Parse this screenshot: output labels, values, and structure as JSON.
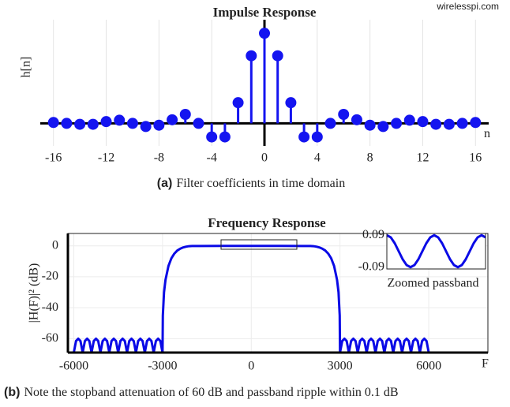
{
  "watermark": "wirelesspi.com",
  "chart_data": [
    {
      "type": "stem",
      "title": "Impulse Response",
      "ylabel": "h[n]",
      "xlabel": "n",
      "caption_label": "(a)",
      "caption": "Filter coefficients in time domain",
      "x": [
        -16,
        -15,
        -14,
        -13,
        -12,
        -11,
        -10,
        -9,
        -8,
        -7,
        -6,
        -5,
        -4,
        -3,
        -2,
        -1,
        0,
        1,
        2,
        3,
        4,
        5,
        6,
        7,
        8,
        9,
        10,
        11,
        12,
        13,
        14,
        15,
        16
      ],
      "values": [
        0.01,
        0,
        -0.01,
        -0.01,
        0.02,
        0.035,
        0,
        -0.035,
        -0.02,
        0.04,
        0.1,
        0,
        -0.15,
        -0.15,
        0.23,
        0.75,
        1,
        0.75,
        0.23,
        -0.15,
        -0.15,
        0,
        0.1,
        0.04,
        -0.02,
        -0.035,
        0,
        0.035,
        0.02,
        -0.01,
        -0.01,
        0,
        0.01
      ],
      "color": "#1414f0",
      "xlim": [
        -17,
        17
      ],
      "ylim": [
        -0.25,
        1.15
      ],
      "xticks": [
        -16,
        -12,
        -8,
        -4,
        0,
        4,
        8,
        12,
        16
      ],
      "grid": true
    },
    {
      "type": "line",
      "title": "Frequency Response",
      "ylabel": "|H(F)|² (dB)",
      "xlabel": "F",
      "caption_label": "(b)",
      "caption": "Note the stopband attenuation of 60 dB and passband ripple within 0.1 dB",
      "x": [
        -6000,
        -5925,
        -5850,
        -5775,
        -5700,
        -5625,
        -5550,
        -5475,
        -5400,
        -5325,
        -5250,
        -5175,
        -5100,
        -5025,
        -4950,
        -4875,
        -4800,
        -4725,
        -4650,
        -4575,
        -4500,
        -4425,
        -4350,
        -4275,
        -4200,
        -4125,
        -4050,
        -3975,
        -3900,
        -3825,
        -3750,
        -3675,
        -3600,
        -3525,
        -3450,
        -3375,
        -3300,
        -3225,
        -3150,
        -3075,
        -3000,
        -2990,
        -2950,
        -2900,
        -2800,
        -2700,
        -2600,
        -2500,
        -2400,
        -2300,
        -2200,
        -2100,
        -2000,
        -1000,
        0,
        1000,
        2000,
        2100,
        2200,
        2300,
        2400,
        2500,
        2600,
        2700,
        2800,
        2900,
        2950,
        2990,
        3000,
        3075,
        3150,
        3225,
        3300,
        3375,
        3450,
        3525,
        3600,
        3675,
        3750,
        3825,
        3900,
        3975,
        4050,
        4125,
        4200,
        4275,
        4350,
        4425,
        4500,
        4575,
        4650,
        4725,
        4800,
        4875,
        4950,
        5025,
        5100,
        5175,
        5250,
        5325,
        5400,
        5475,
        5550,
        5625,
        5700,
        5775,
        5850,
        5925,
        6000
      ],
      "series": [
        {
          "color": "#0a0ae6",
          "values": [
            -69,
            -61.5,
            -60,
            -61.5,
            -69,
            -61.5,
            -60,
            -61.5,
            -69,
            -61.5,
            -60,
            -61.5,
            -69,
            -61.5,
            -60,
            -61.5,
            -69,
            -61.5,
            -60,
            -61.5,
            -69,
            -61.5,
            -60,
            -61.5,
            -69,
            -61.5,
            -60,
            -61.5,
            -69,
            -61.5,
            -60,
            -61.5,
            -69,
            -61.5,
            -60,
            -61.5,
            -69,
            -61.5,
            -60,
            -61.5,
            -69,
            -45,
            -30,
            -22,
            -13,
            -8,
            -5,
            -3,
            -1.8,
            -1,
            -0.5,
            -0.2,
            -0.1,
            0,
            0,
            0,
            -0.1,
            -0.2,
            -0.5,
            -1,
            -1.8,
            -3,
            -5,
            -8,
            -13,
            -22,
            -30,
            -45,
            -69,
            -61.5,
            -60,
            -61.5,
            -69,
            -61.5,
            -60,
            -61.5,
            -69,
            -61.5,
            -60,
            -61.5,
            -69,
            -61.5,
            -60,
            -61.5,
            -69,
            -61.5,
            -60,
            -61.5,
            -69,
            -61.5,
            -60,
            -61.5,
            -69,
            -61.5,
            -60,
            -61.5,
            -69,
            -61.5,
            -60,
            -61.5,
            -69,
            -61.5,
            -60,
            -61.5,
            -69,
            -61.5,
            -60,
            -61.5,
            -69
          ]
        }
      ],
      "xlim": [
        -6200,
        8000
      ],
      "ylim": [
        -69,
        8
      ],
      "xticks": [
        -6000,
        -3000,
        0,
        3000,
        6000
      ],
      "yticks": [
        0,
        -20,
        -40,
        -60
      ],
      "grid": true
    },
    {
      "type": "line",
      "xlabel": "Zoomed passband",
      "x": [
        -1000,
        -900,
        -800,
        -700,
        -600,
        -500,
        -400,
        -300,
        -200,
        -100,
        0,
        100,
        200,
        300,
        400,
        500,
        600,
        700,
        800,
        900,
        1000,
        1100,
        1200,
        1300,
        1400,
        1500
      ],
      "series": [
        {
          "color": "#0a0ae6",
          "values": [
            0.09,
            0.078,
            0.045,
            0,
            -0.045,
            -0.078,
            -0.09,
            -0.078,
            -0.045,
            0,
            0.045,
            0.078,
            0.09,
            0.078,
            0.045,
            0,
            -0.045,
            -0.078,
            -0.09,
            -0.078,
            -0.045,
            0,
            0.045,
            0.078,
            0.09,
            0.078
          ]
        }
      ],
      "xlim": [
        -1000,
        1500
      ],
      "ylim": [
        -0.1,
        0.1
      ],
      "yticks": [
        0.09,
        -0.09
      ],
      "grid": false
    }
  ]
}
